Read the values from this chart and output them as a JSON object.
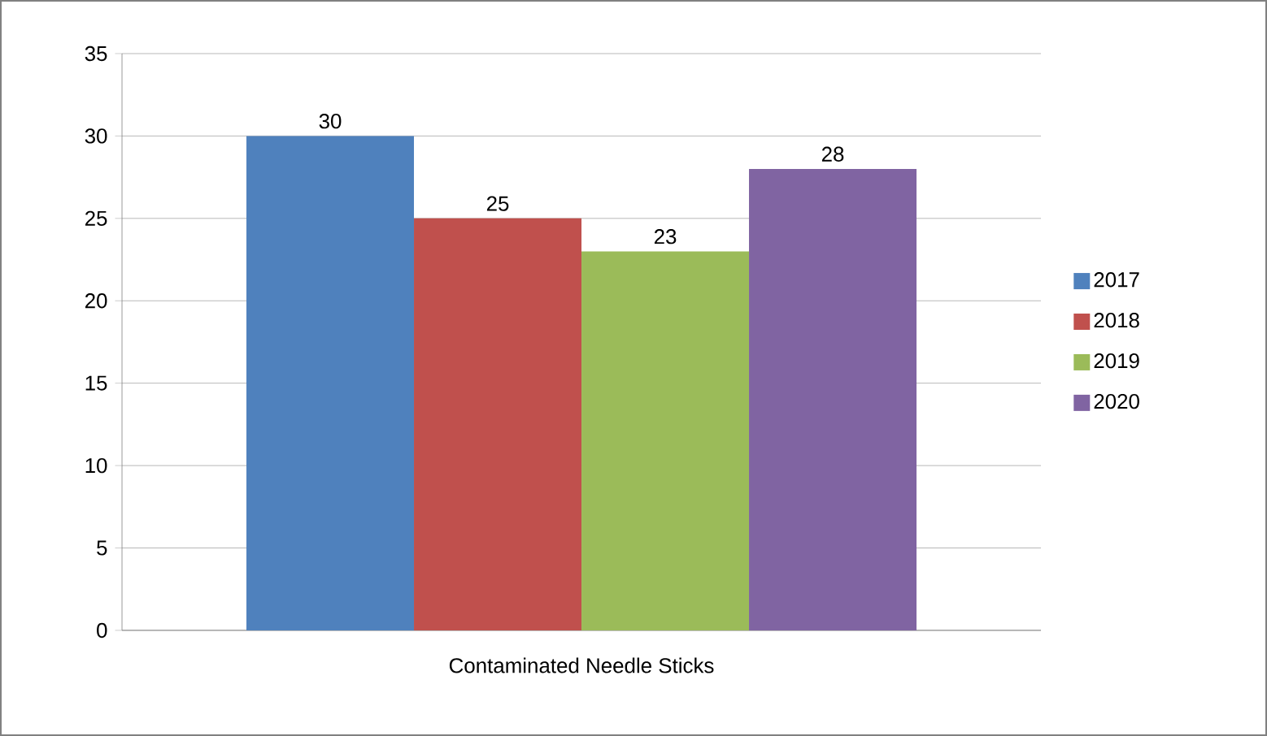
{
  "chart_data": {
    "type": "bar",
    "categories": [
      "Contaminated Needle Sticks"
    ],
    "series": [
      {
        "name": "2017",
        "color": "#4f81bd",
        "values": [
          30
        ]
      },
      {
        "name": "2018",
        "color": "#c0504d",
        "values": [
          25
        ]
      },
      {
        "name": "2019",
        "color": "#9bbb59",
        "values": [
          23
        ]
      },
      {
        "name": "2020",
        "color": "#8064a2",
        "values": [
          28
        ]
      }
    ],
    "ylim": [
      0,
      35
    ],
    "yticks": [
      0,
      5,
      10,
      15,
      20,
      25,
      30,
      35
    ],
    "grid": "y",
    "legend": "right",
    "data_labels": true
  }
}
